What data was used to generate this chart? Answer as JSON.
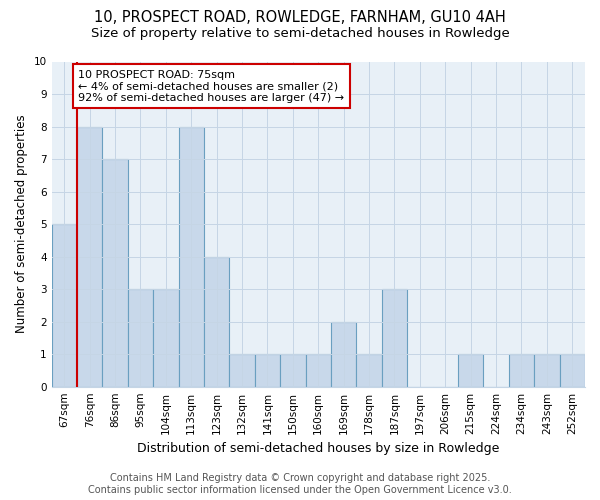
{
  "title1": "10, PROSPECT ROAD, ROWLEDGE, FARNHAM, GU10 4AH",
  "title2": "Size of property relative to semi-detached houses in Rowledge",
  "xlabel": "Distribution of semi-detached houses by size in Rowledge",
  "ylabel": "Number of semi-detached properties",
  "categories": [
    "67sqm",
    "76sqm",
    "86sqm",
    "95sqm",
    "104sqm",
    "113sqm",
    "123sqm",
    "132sqm",
    "141sqm",
    "150sqm",
    "160sqm",
    "169sqm",
    "178sqm",
    "187sqm",
    "197sqm",
    "206sqm",
    "215sqm",
    "224sqm",
    "234sqm",
    "243sqm",
    "252sqm"
  ],
  "values": [
    5,
    8,
    7,
    3,
    3,
    8,
    4,
    1,
    1,
    1,
    1,
    2,
    1,
    3,
    0,
    0,
    1,
    0,
    1,
    1,
    1
  ],
  "bar_color": "#c8d8ea",
  "bar_edge_color": "#6a9fc0",
  "ax_bg_color": "#e8f0f7",
  "red_line_color": "#cc0000",
  "annotation_text": "10 PROSPECT ROAD: 75sqm\n← 4% of semi-detached houses are smaller (2)\n92% of semi-detached houses are larger (47) →",
  "annotation_box_color": "white",
  "annotation_box_edge_color": "#cc0000",
  "grid_color": "#c5d5e5",
  "background_color": "white",
  "footer1": "Contains HM Land Registry data © Crown copyright and database right 2025.",
  "footer2": "Contains public sector information licensed under the Open Government Licence v3.0.",
  "ylim": [
    0,
    10
  ],
  "yticks": [
    0,
    1,
    2,
    3,
    4,
    5,
    6,
    7,
    8,
    9,
    10
  ],
  "title1_fontsize": 10.5,
  "title2_fontsize": 9.5,
  "xlabel_fontsize": 9,
  "ylabel_fontsize": 8.5,
  "tick_fontsize": 7.5,
  "annotation_fontsize": 8,
  "footer_fontsize": 7
}
